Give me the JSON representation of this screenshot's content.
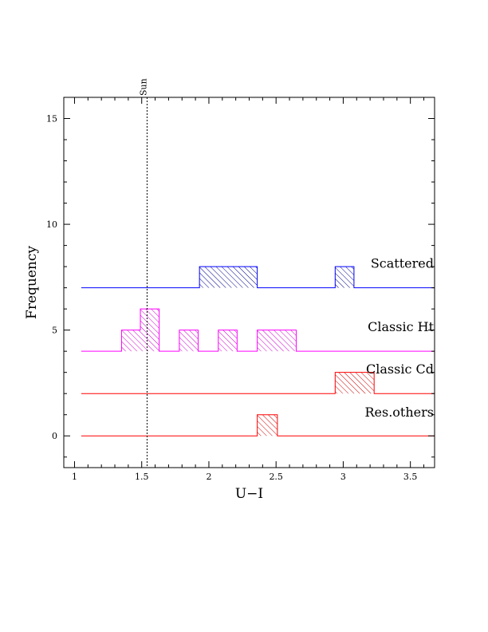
{
  "chart_data": {
    "type": "bar",
    "xlabel": "U−I",
    "ylabel": "Frequency",
    "xlim": [
      0.92,
      3.68
    ],
    "ylim": [
      -1.5,
      16
    ],
    "x_ticks": [
      1,
      1.5,
      2,
      2.5,
      3,
      3.5
    ],
    "x_tick_labels": [
      "1",
      "1.5",
      "2",
      "2.5",
      "3",
      "3.5"
    ],
    "y_ticks": [
      0,
      5,
      10,
      15
    ],
    "y_tick_labels": [
      "0",
      "5",
      "10",
      "15"
    ],
    "bin_width": 0.145,
    "x_range": [
      1.05,
      3.68
    ],
    "reference_line": {
      "label": "Sun",
      "x": 1.54
    },
    "series": [
      {
        "name": "Scattered",
        "color": "#0000ff",
        "hatch": "#00008b",
        "offset": 7,
        "bars": [
          {
            "x0": 1.93,
            "x1": 2.36,
            "count": 1
          },
          {
            "x0": 2.94,
            "x1": 3.08,
            "count": 1
          }
        ]
      },
      {
        "name": "Classic Ht",
        "color": "#ff00ff",
        "hatch": "#cc00cc",
        "offset": 4,
        "bars": [
          {
            "x0": 1.35,
            "x1": 1.49,
            "count": 1
          },
          {
            "x0": 1.49,
            "x1": 1.63,
            "count": 2
          },
          {
            "x0": 1.78,
            "x1": 1.92,
            "count": 1
          },
          {
            "x0": 2.07,
            "x1": 2.21,
            "count": 1
          },
          {
            "x0": 2.36,
            "x1": 2.65,
            "count": 1
          }
        ]
      },
      {
        "name": "Classic Cd",
        "color": "#ff0000",
        "hatch": "#cc0000",
        "offset": 2,
        "bars": [
          {
            "x0": 2.94,
            "x1": 3.23,
            "count": 1
          }
        ]
      },
      {
        "name": "Res.others",
        "color": "#ff0000",
        "hatch": "#cc0000",
        "offset": 0,
        "bars": [
          {
            "x0": 2.36,
            "x1": 2.51,
            "count": 1
          }
        ]
      }
    ]
  }
}
